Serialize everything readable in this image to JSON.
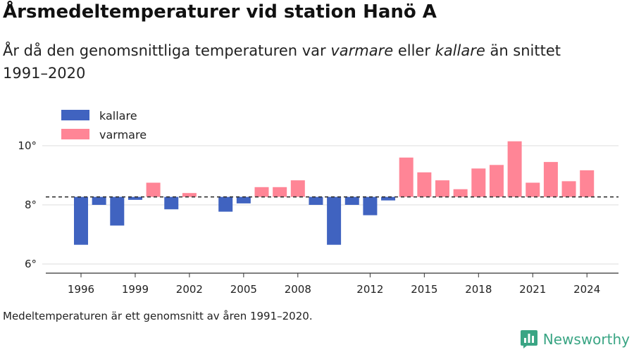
{
  "header": {
    "title": "Årsmedeltemperaturer vid station Hanö A",
    "subtitle_part1": "År då den genomsnittliga temperaturen var ",
    "subtitle_warmer": "varmare",
    "subtitle_part2": " eller ",
    "subtitle_colder": "kallare",
    "subtitle_part3": " än snittet 1991–2020"
  },
  "footnote": "Medeltemperaturen är ett genomsnitt av åren 1991–2020.",
  "brand": {
    "name": "Newsworthy",
    "icon": "newsworthy-logo-icon",
    "color": "#3aa584"
  },
  "colors": {
    "kallare": "#4063c0",
    "varmare": "#ff8596",
    "reference_line": "#333333",
    "grid": "#dddddd",
    "axis": "#333333"
  },
  "chart_data": {
    "type": "bar",
    "title": "Årsmedeltemperaturer vid station Hanö A",
    "xlabel": "",
    "ylabel": "",
    "baseline": 8.27,
    "baseline_style": "dashed",
    "ylim": [
      5.7,
      11.1
    ],
    "y_ticks": [
      6,
      8,
      10
    ],
    "y_tick_labels": [
      "6°",
      "8°",
      "10°"
    ],
    "x_ticks": [
      1996,
      1999,
      2002,
      2005,
      2008,
      2012,
      2015,
      2018,
      2021,
      2024
    ],
    "x_tick_labels": [
      "1996",
      "1999",
      "2002",
      "2005",
      "2008",
      "2012",
      "2015",
      "2018",
      "2021",
      "2024"
    ],
    "grid": true,
    "legend": {
      "position": "top-left",
      "entries": [
        {
          "name": "kallare",
          "color": "#4063c0"
        },
        {
          "name": "varmare",
          "color": "#ff8596"
        }
      ]
    },
    "data": [
      {
        "year": 1996,
        "value": 6.65
      },
      {
        "year": 1997,
        "value": 8.0
      },
      {
        "year": 1998,
        "value": 7.3
      },
      {
        "year": 1999,
        "value": 8.17
      },
      {
        "year": 2000,
        "value": 8.75
      },
      {
        "year": 2001,
        "value": 7.85
      },
      {
        "year": 2002,
        "value": 8.4
      },
      {
        "year": 2004,
        "value": 7.77
      },
      {
        "year": 2005,
        "value": 8.05
      },
      {
        "year": 2006,
        "value": 8.6
      },
      {
        "year": 2007,
        "value": 8.6
      },
      {
        "year": 2008,
        "value": 8.83
      },
      {
        "year": 2009,
        "value": 8.0
      },
      {
        "year": 2010,
        "value": 6.65
      },
      {
        "year": 2011,
        "value": 8.0
      },
      {
        "year": 2012,
        "value": 7.65
      },
      {
        "year": 2013,
        "value": 8.15
      },
      {
        "year": 2014,
        "value": 9.6
      },
      {
        "year": 2015,
        "value": 9.1
      },
      {
        "year": 2016,
        "value": 8.83
      },
      {
        "year": 2017,
        "value": 8.53
      },
      {
        "year": 2018,
        "value": 9.23
      },
      {
        "year": 2019,
        "value": 9.35
      },
      {
        "year": 2020,
        "value": 10.15
      },
      {
        "year": 2021,
        "value": 8.75
      },
      {
        "year": 2022,
        "value": 9.45
      },
      {
        "year": 2023,
        "value": 8.8
      },
      {
        "year": 2024,
        "value": 9.17
      }
    ]
  }
}
